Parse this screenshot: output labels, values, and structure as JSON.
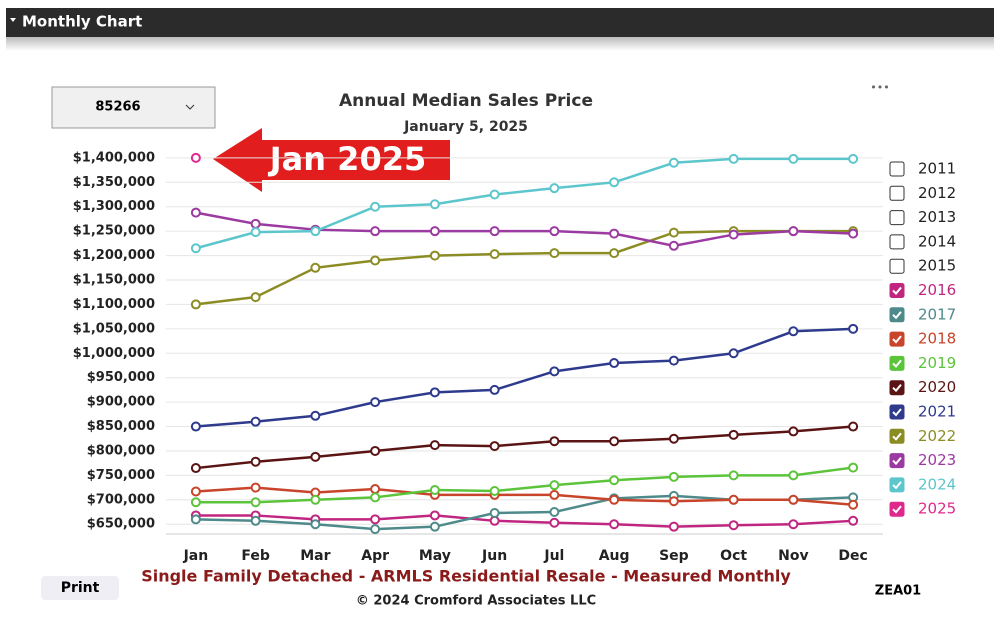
{
  "header": "Monthly Chart",
  "dropdown": "85266",
  "menu": "•••",
  "print": "Print",
  "code": "ZEA01",
  "chart_data": {
    "type": "line",
    "title": "Annual Median Sales Price",
    "subtitle": "January 5, 2025",
    "annotation": "Jan 2025",
    "footer": "Single Family Detached - ARMLS Residential Resale - Measured Monthly",
    "copyright": "© 2024 Cromford Associates LLC",
    "categories": [
      "Jan",
      "Feb",
      "Mar",
      "Apr",
      "May",
      "Jun",
      "Jul",
      "Aug",
      "Sep",
      "Oct",
      "Nov",
      "Dec"
    ],
    "ylim": [
      630000,
      1410000
    ],
    "yticks": [
      {
        "value": 650000,
        "label": "$650,000"
      },
      {
        "value": 700000,
        "label": "$700,000"
      },
      {
        "value": 750000,
        "label": "$750,000"
      },
      {
        "value": 800000,
        "label": "$800,000"
      },
      {
        "value": 850000,
        "label": "$850,000"
      },
      {
        "value": 900000,
        "label": "$900,000"
      },
      {
        "value": 950000,
        "label": "$950,000"
      },
      {
        "value": 1000000,
        "label": "$1,000,000"
      },
      {
        "value": 1050000,
        "label": "$1,050,000"
      },
      {
        "value": 1100000,
        "label": "$1,100,000"
      },
      {
        "value": 1150000,
        "label": "$1,150,000"
      },
      {
        "value": 1200000,
        "label": "$1,200,000"
      },
      {
        "value": 1250000,
        "label": "$1,250,000"
      },
      {
        "value": 1300000,
        "label": "$1,300,000"
      },
      {
        "value": 1350000,
        "label": "$1,350,000"
      },
      {
        "value": 1400000,
        "label": "$1,400,000"
      }
    ],
    "grid": true,
    "series": [
      {
        "name": "2011",
        "visible": false,
        "color": "#333333",
        "values": [
          null,
          null,
          null,
          null,
          null,
          null,
          null,
          null,
          null,
          null,
          null,
          null
        ]
      },
      {
        "name": "2012",
        "visible": false,
        "color": "#333333",
        "values": [
          null,
          null,
          null,
          null,
          null,
          null,
          null,
          null,
          null,
          null,
          null,
          null
        ]
      },
      {
        "name": "2013",
        "visible": false,
        "color": "#333333",
        "values": [
          null,
          null,
          null,
          null,
          null,
          null,
          null,
          null,
          null,
          null,
          null,
          null
        ]
      },
      {
        "name": "2014",
        "visible": false,
        "color": "#333333",
        "values": [
          null,
          null,
          null,
          null,
          null,
          null,
          null,
          null,
          null,
          null,
          null,
          null
        ]
      },
      {
        "name": "2015",
        "visible": false,
        "color": "#333333",
        "values": [
          null,
          null,
          null,
          null,
          null,
          null,
          null,
          null,
          null,
          null,
          null,
          null
        ]
      },
      {
        "name": "2016",
        "visible": true,
        "color": "#c0267f",
        "values": [
          668000,
          668000,
          660000,
          660000,
          668000,
          657000,
          653000,
          650000,
          645000,
          648000,
          650000,
          657000
        ]
      },
      {
        "name": "2017",
        "visible": true,
        "color": "#4f8a8b",
        "values": [
          660000,
          657000,
          650000,
          640000,
          645000,
          673000,
          675000,
          703000,
          708000,
          700000,
          700000,
          705000
        ]
      },
      {
        "name": "2018",
        "visible": true,
        "color": "#c8442a",
        "values": [
          717000,
          725000,
          715000,
          722000,
          710000,
          710000,
          710000,
          700000,
          697000,
          700000,
          700000,
          690000
        ]
      },
      {
        "name": "2019",
        "visible": true,
        "color": "#5cc43a",
        "values": [
          695000,
          695000,
          700000,
          705000,
          720000,
          718000,
          730000,
          740000,
          747000,
          750000,
          750000,
          766000
        ]
      },
      {
        "name": "2020",
        "visible": true,
        "color": "#5a1414",
        "values": [
          765000,
          778000,
          788000,
          800000,
          812000,
          810000,
          820000,
          820000,
          825000,
          833000,
          840000,
          850000
        ]
      },
      {
        "name": "2021",
        "visible": true,
        "color": "#2e3a8c",
        "values": [
          850000,
          860000,
          872000,
          900000,
          920000,
          925000,
          963000,
          980000,
          985000,
          1000000,
          1045000,
          1050000
        ]
      },
      {
        "name": "2022",
        "visible": true,
        "color": "#8c8c24",
        "values": [
          1100000,
          1115000,
          1175000,
          1190000,
          1200000,
          1203000,
          1205000,
          1205000,
          1247000,
          1250000,
          1250000,
          1250000
        ]
      },
      {
        "name": "2023",
        "visible": true,
        "color": "#9b3aa0",
        "values": [
          1288000,
          1265000,
          1253000,
          1250000,
          1250000,
          1250000,
          1250000,
          1245000,
          1220000,
          1243000,
          1250000,
          1245000
        ]
      },
      {
        "name": "2024",
        "visible": true,
        "color": "#5cc6cc",
        "values": [
          1215000,
          1248000,
          1250000,
          1300000,
          1305000,
          1325000,
          1338000,
          1350000,
          1390000,
          1398000,
          1398000,
          1398000
        ]
      },
      {
        "name": "2025",
        "visible": true,
        "color": "#e0288c",
        "values": [
          1400000,
          null,
          null,
          null,
          null,
          null,
          null,
          null,
          null,
          null,
          null,
          null
        ]
      }
    ]
  }
}
